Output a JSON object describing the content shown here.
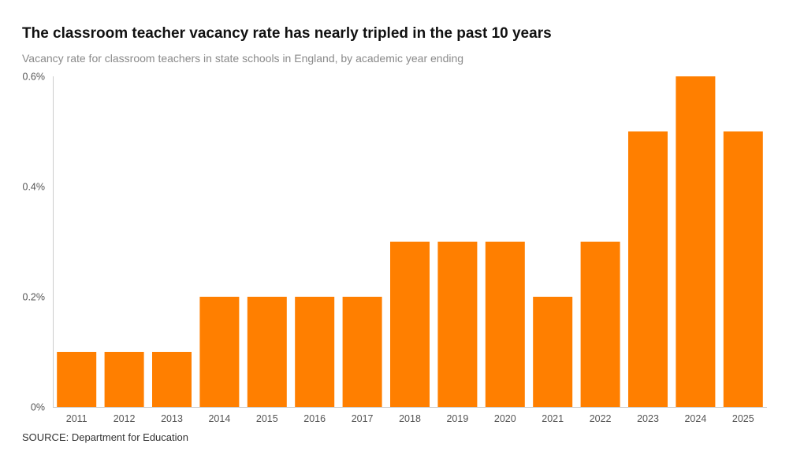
{
  "title": "The classroom teacher vacancy rate has nearly tripled in the past 10 years",
  "subtitle": "Vacancy rate for classroom teachers in state schools in England, by academic year ending",
  "source": "SOURCE: Department for Education",
  "chart_data": {
    "type": "bar",
    "title": "The classroom teacher vacancy rate has nearly tripled in the past 10 years",
    "subtitle": "Vacancy rate for classroom teachers in state schools in England, by academic year ending",
    "xlabel": "",
    "ylabel": "",
    "categories": [
      "2011",
      "2012",
      "2013",
      "2014",
      "2015",
      "2016",
      "2017",
      "2018",
      "2019",
      "2020",
      "2021",
      "2022",
      "2023",
      "2024",
      "2025"
    ],
    "values": [
      0.1,
      0.1,
      0.1,
      0.2,
      0.2,
      0.2,
      0.2,
      0.3,
      0.3,
      0.3,
      0.2,
      0.3,
      0.5,
      0.6,
      0.5
    ],
    "ylim": [
      0,
      0.6
    ],
    "yticks": [
      0,
      0.2,
      0.4,
      0.6
    ],
    "ytick_labels": [
      "0%",
      "0.2%",
      "0.4%",
      "0.6%"
    ],
    "grid": false,
    "legend": "none",
    "bar_color": "#ff7f00",
    "axis_color": "#cccccc"
  }
}
